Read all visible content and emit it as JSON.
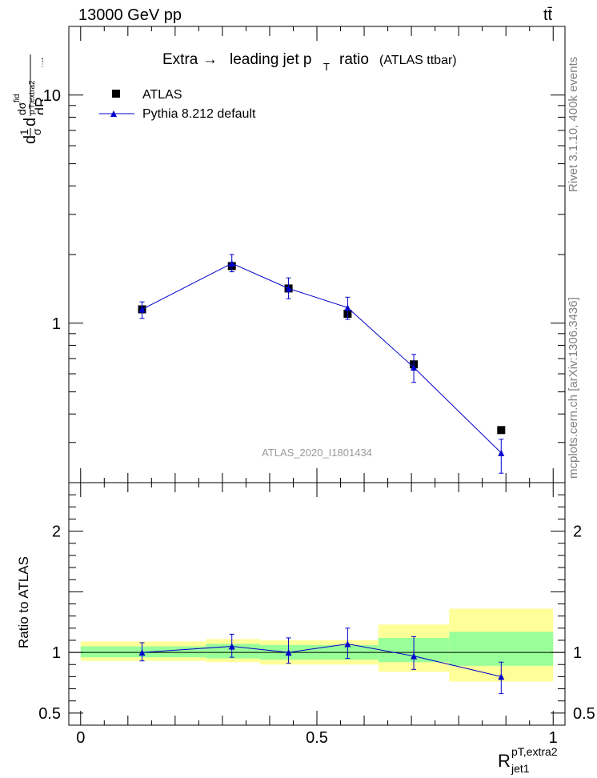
{
  "header": {
    "left": "13000 GeV pp",
    "right": "tt̄"
  },
  "side_labels": {
    "rivet": "Rivet 3.1.10,  400k events",
    "mcplots": "mcplots.cern.ch [arXiv:1306.3436]"
  },
  "y_axis_label_main": "dσ/dR (1/σ dσ^fid / d p_T,extra2 / jet1)",
  "y_axis_label_ratio": "Ratio to ATLAS",
  "x_axis_label": {
    "main": "R",
    "sup": "pT,extra2",
    "sub": "jet1"
  },
  "chart_data": [
    {
      "type": "line",
      "title": "Extra → leading jet p_T ratio (ATLAS ttbar)",
      "title_text": {
        "a": "Extra",
        "arrow": "→",
        "b": "leading jet p",
        "sub": "T",
        "c": "ratio",
        "d": "(ATLAS ttbar)"
      },
      "watermark": "ATLAS_2020_I1801434",
      "yscale": "log",
      "ylim": [
        0.2,
        20
      ],
      "xlim": [
        -0.025,
        1.025
      ],
      "yticks_labeled": [
        {
          "value": 1,
          "label": "1"
        },
        {
          "value": 10,
          "label": "10"
        }
      ],
      "xticks_labeled": [
        {
          "value": 0,
          "label": "0"
        },
        {
          "value": 0.5,
          "label": "0.5"
        },
        {
          "value": 1,
          "label": "1"
        }
      ],
      "legend": {
        "placement": "top-left",
        "entries": [
          "ATLAS",
          "Pythia 8.212 default"
        ]
      },
      "series": [
        {
          "name": "ATLAS",
          "marker": "square",
          "color": "#000000",
          "x": [
            0.13,
            0.32,
            0.44,
            0.565,
            0.705,
            0.89
          ],
          "y": [
            1.15,
            1.78,
            1.42,
            1.1,
            0.66,
            0.34
          ]
        },
        {
          "name": "Pythia 8.212 default",
          "marker": "triangle",
          "color": "#0000cc",
          "x": [
            0.13,
            0.32,
            0.44,
            0.565,
            0.705,
            0.89
          ],
          "y": [
            1.15,
            1.83,
            1.42,
            1.17,
            0.64,
            0.27
          ],
          "yerr_low": [
            1.05,
            1.68,
            1.28,
            1.04,
            0.55,
            0.22
          ],
          "yerr_high": [
            1.24,
            2.0,
            1.58,
            1.3,
            0.73,
            0.31
          ]
        }
      ]
    },
    {
      "type": "line",
      "title": "",
      "ylabel": "Ratio to ATLAS",
      "ylim": [
        0.4,
        2.4
      ],
      "xlim": [
        -0.025,
        1.025
      ],
      "yticks_labeled": [
        {
          "value": 0.5,
          "label": "0.5"
        },
        {
          "value": 1,
          "label": "1"
        },
        {
          "value": 2,
          "label": "2"
        }
      ],
      "xticks_labeled": [
        {
          "value": 0,
          "label": "0"
        },
        {
          "value": 0.5,
          "label": "0.5"
        },
        {
          "value": 1,
          "label": "1"
        }
      ],
      "reference_line": 1,
      "bands": [
        {
          "x0": 0.0,
          "x1": 0.265,
          "yellow": [
            0.93,
            1.09
          ],
          "green": [
            0.96,
            1.05
          ]
        },
        {
          "x0": 0.265,
          "x1": 0.38,
          "yellow": [
            0.92,
            1.11
          ],
          "green": [
            0.95,
            1.07
          ]
        },
        {
          "x0": 0.38,
          "x1": 0.63,
          "yellow": [
            0.9,
            1.1
          ],
          "green": [
            0.94,
            1.06
          ]
        },
        {
          "x0": 0.63,
          "x1": 0.78,
          "yellow": [
            0.84,
            1.23
          ],
          "green": [
            0.92,
            1.12
          ]
        },
        {
          "x0": 0.78,
          "x1": 1.0,
          "yellow": [
            0.76,
            1.36
          ],
          "green": [
            0.89,
            1.17
          ]
        }
      ],
      "series": [
        {
          "name": "Pythia 8.212 default",
          "color": "#0000cc",
          "x": [
            0.13,
            0.32,
            0.44,
            0.565,
            0.705,
            0.89
          ],
          "y": [
            1.0,
            1.05,
            1.0,
            1.07,
            0.97,
            0.8
          ],
          "yerr_low": [
            0.93,
            0.96,
            0.91,
            0.95,
            0.86,
            0.66
          ],
          "yerr_high": [
            1.08,
            1.15,
            1.12,
            1.2,
            1.13,
            0.92
          ]
        }
      ]
    }
  ]
}
